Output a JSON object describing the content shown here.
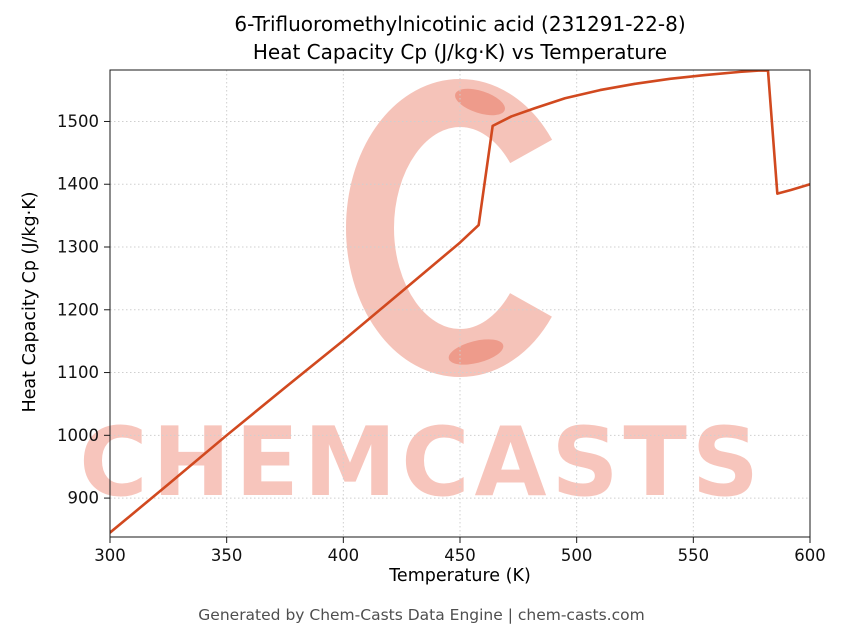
{
  "chart_data": {
    "type": "line",
    "title_lines": [
      "6-Trifluoromethylnicotinic acid (231291-22-8)",
      "Heat Capacity Cp (J/kg·K) vs Temperature"
    ],
    "xlabel": "Temperature (K)",
    "ylabel": "Heat Capacity Cp (J/kg·K)",
    "xlim": [
      300,
      600
    ],
    "ylim": [
      838,
      1582
    ],
    "x_ticks": [
      300,
      350,
      400,
      450,
      500,
      550,
      600
    ],
    "y_ticks": [
      900,
      1000,
      1100,
      1200,
      1300,
      1400,
      1500
    ],
    "grid": true,
    "legend": "none",
    "line_color": "#d1491f",
    "series": [
      {
        "name": "Heat Capacity Cp (J/kg·K)",
        "x": [
          300,
          325,
          350,
          375,
          400,
          425,
          450,
          458,
          464,
          472,
          482,
          495,
          510,
          525,
          540,
          555,
          570,
          578,
          582,
          586,
          592,
          600
        ],
        "y": [
          845,
          922,
          1000,
          1076,
          1151,
          1229,
          1307,
          1335,
          1493,
          1508,
          1521,
          1537,
          1550,
          1560,
          1568,
          1574,
          1579,
          1581,
          1581,
          1385,
          1391,
          1400
        ]
      }
    ]
  },
  "watermark": {
    "text": "CHEMCASTS",
    "color": "#e8553a"
  },
  "footer": {
    "text": "Generated by Chem-Casts Data Engine | chem-casts.com"
  }
}
